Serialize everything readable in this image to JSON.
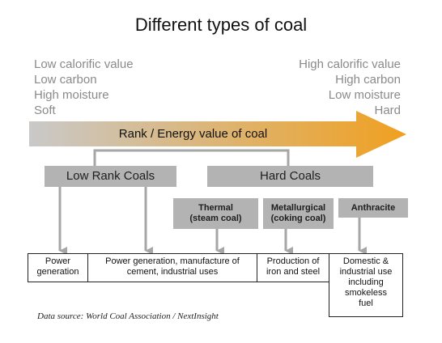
{
  "title": "Different types of coal",
  "left_properties": [
    "Low calorific value",
    "Low carbon",
    "High moisture",
    "Soft"
  ],
  "right_properties": [
    "High calorific value",
    "High carbon",
    "Low moisture",
    "Hard"
  ],
  "arrow": {
    "label": "Rank / Energy value of coal",
    "gradient_start": "#c9c9c9",
    "gradient_end": "#f0a020"
  },
  "categories": {
    "low_rank": "Low Rank Coals",
    "hard": "Hard Coals"
  },
  "hard_coal_types": {
    "thermal": [
      "Thermal",
      "(steam coal)"
    ],
    "metallurgical": [
      "Metallurgical",
      "(coking coal)"
    ],
    "anthracite": "Anthracite"
  },
  "uses": [
    [
      "Power",
      "generation"
    ],
    [
      "Power generation, manufacture of",
      "cement, industrial uses"
    ],
    [
      "Production of",
      "iron and steel"
    ],
    [
      "Domestic &",
      "industrial use",
      "including",
      "smokeless",
      "fuel"
    ]
  ],
  "source": "Data source: World Coal Association / NextInsight"
}
